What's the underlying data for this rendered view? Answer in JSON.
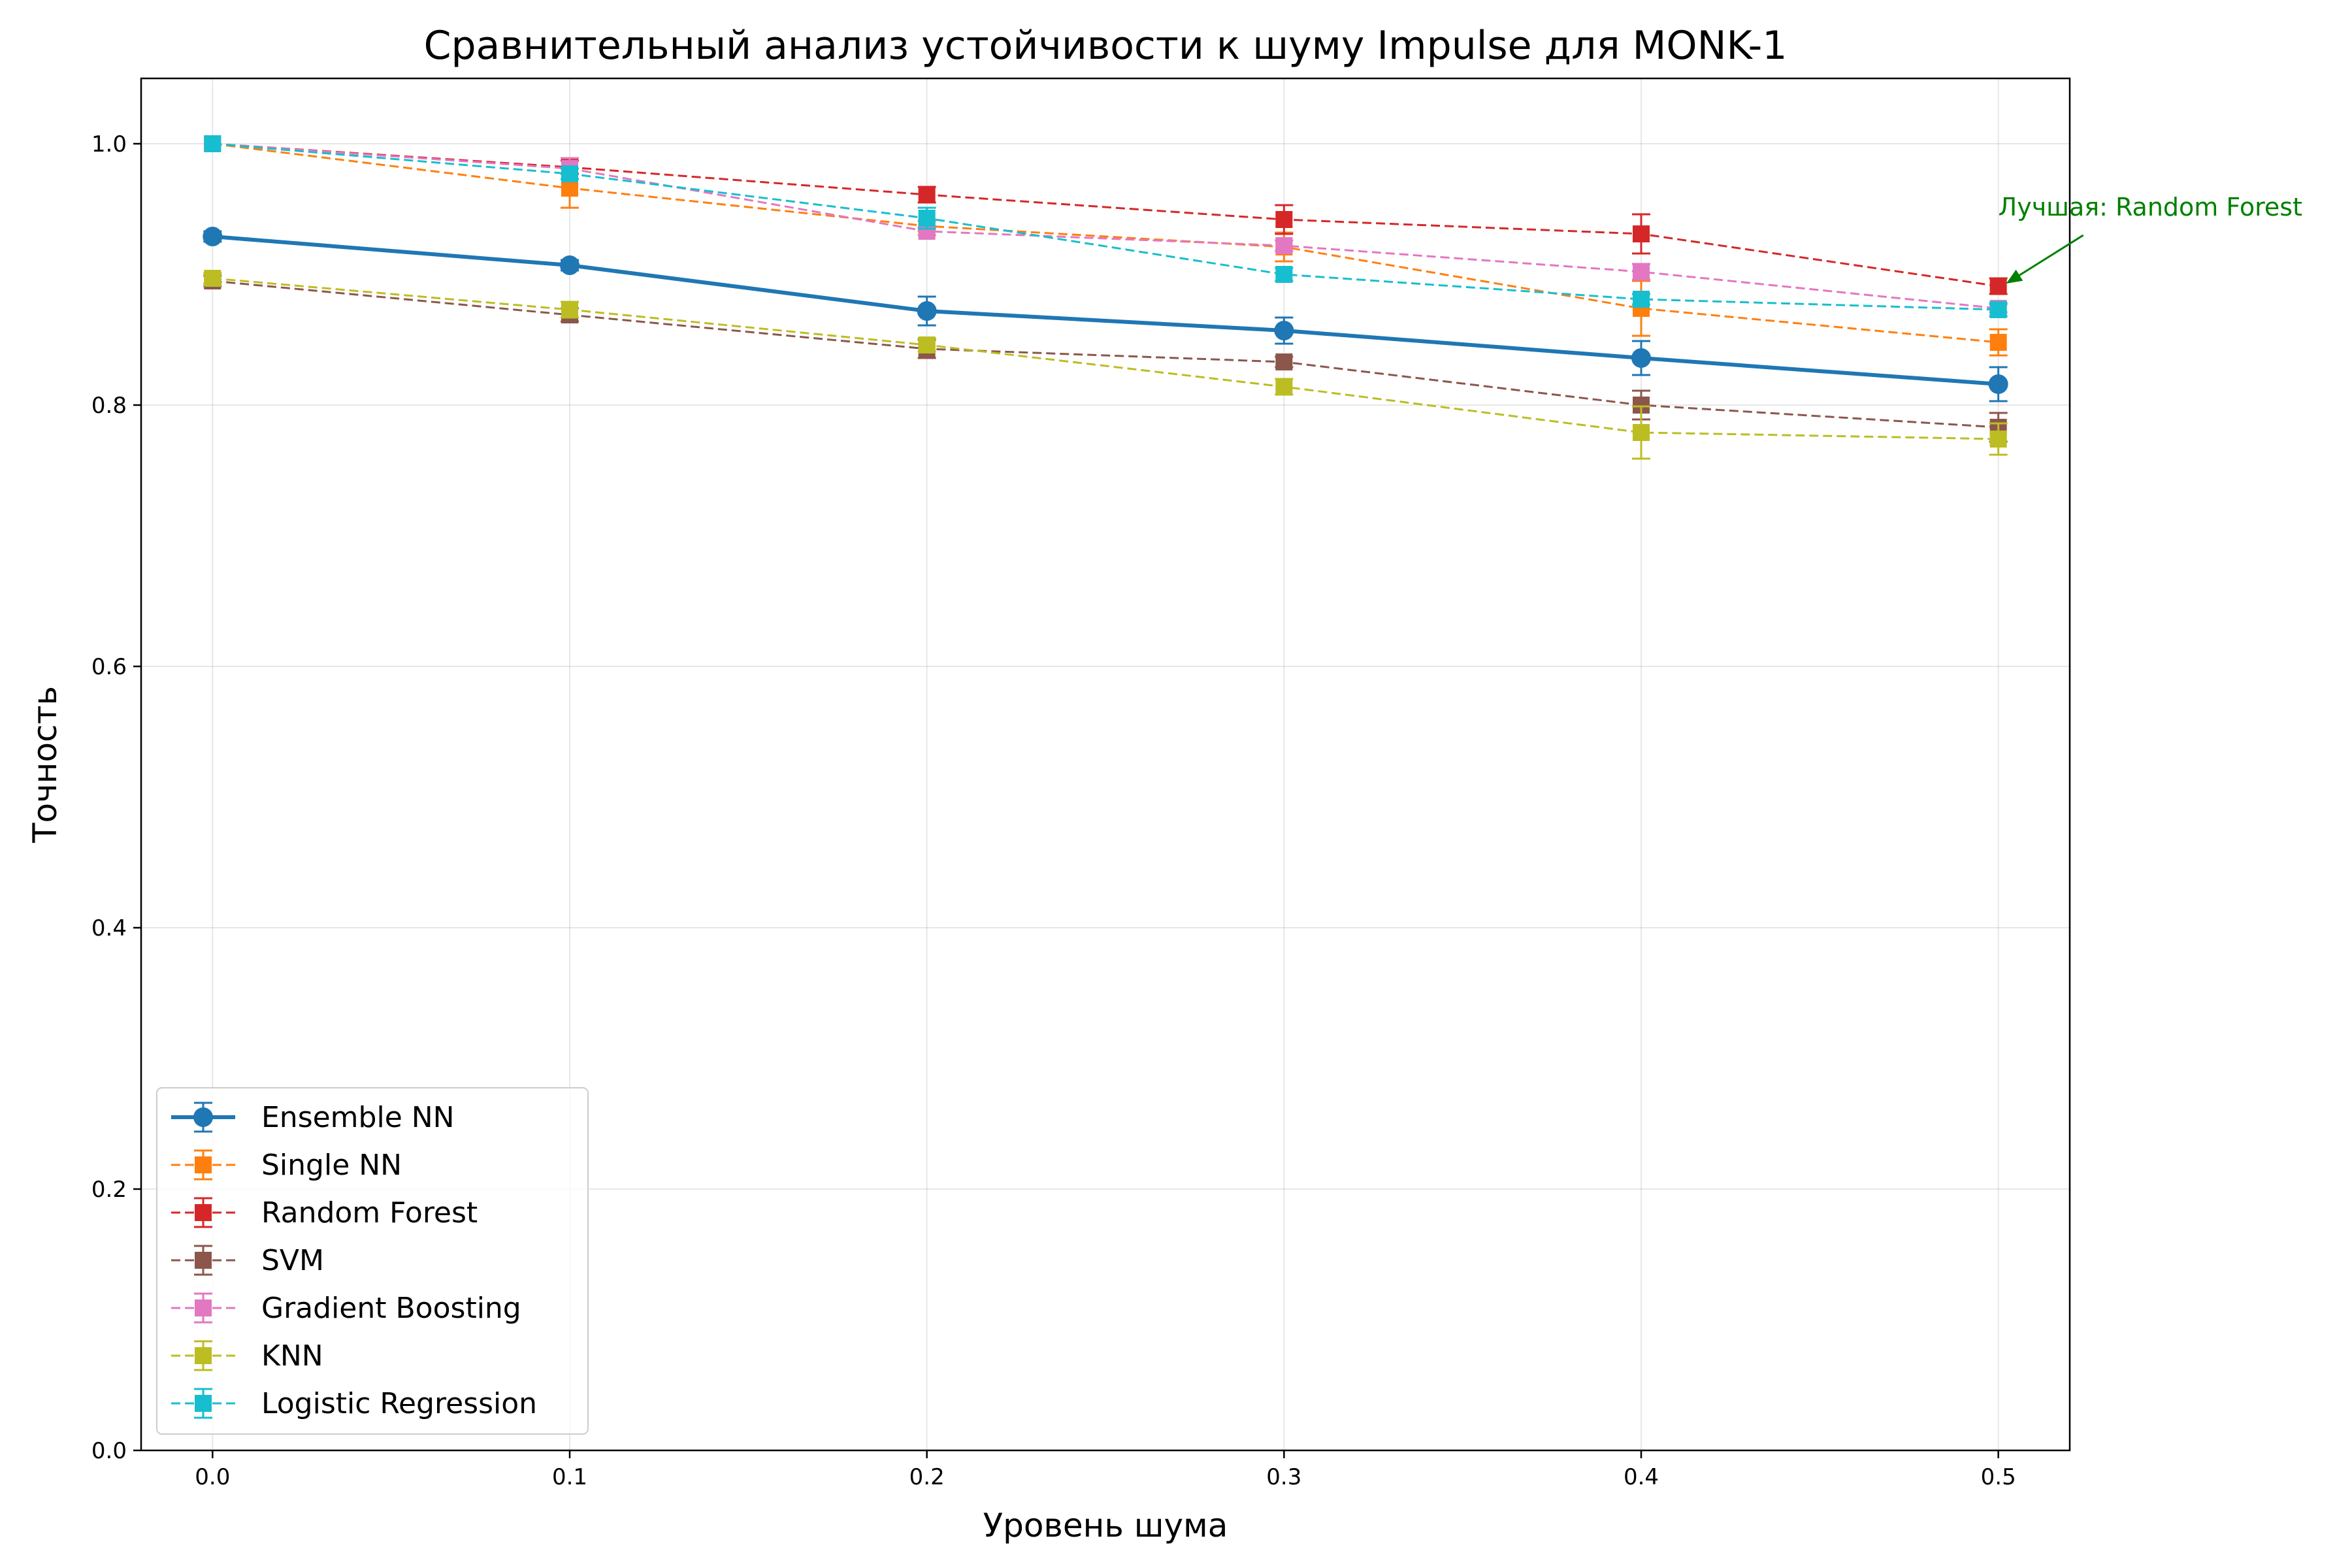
{
  "chart_data": {
    "type": "line",
    "title": "Сравнительный анализ устойчивости к шуму Impulse для MONK-1",
    "xlabel": "Уровень шума",
    "ylabel": "Точность",
    "x": [
      0.0,
      0.1,
      0.2,
      0.3,
      0.4,
      0.5
    ],
    "x_tick_labels": [
      "0.0",
      "0.1",
      "0.2",
      "0.3",
      "0.4",
      "0.5"
    ],
    "y_tick_values": [
      0.0,
      0.2,
      0.4,
      0.6,
      0.8,
      1.0
    ],
    "y_tick_labels": [
      "0.0",
      "0.2",
      "0.4",
      "0.6",
      "0.8",
      "1.0"
    ],
    "xlim": [
      -0.02,
      0.52
    ],
    "ylim": [
      0.0,
      1.05
    ],
    "grid": true,
    "legend_placement": "lower-left",
    "series": [
      {
        "name": "Ensemble NN",
        "color": "#1f77b4",
        "marker": "circle",
        "style": "solid",
        "values": [
          0.929,
          0.907,
          0.872,
          0.857,
          0.836,
          0.816
        ],
        "errors": [
          0.004,
          0.004,
          0.011,
          0.01,
          0.013,
          0.013
        ]
      },
      {
        "name": "Single NN",
        "color": "#ff7f0e",
        "marker": "square",
        "style": "dashed",
        "values": [
          1.0,
          0.966,
          0.937,
          0.921,
          0.874,
          0.848
        ],
        "errors": [
          0.0,
          0.015,
          0.004,
          0.011,
          0.021,
          0.01
        ]
      },
      {
        "name": "Random Forest",
        "color": "#d62728",
        "marker": "square",
        "style": "dashed",
        "values": [
          1.0,
          0.982,
          0.961,
          0.942,
          0.931,
          0.891
        ],
        "errors": [
          0.0,
          0.005,
          0.006,
          0.011,
          0.015,
          0.006
        ]
      },
      {
        "name": "SVM",
        "color": "#8c564b",
        "marker": "square",
        "style": "dashed",
        "values": [
          0.895,
          0.869,
          0.843,
          0.833,
          0.8,
          0.783
        ],
        "errors": [
          0.004,
          0.005,
          0.007,
          0.004,
          0.011,
          0.011
        ]
      },
      {
        "name": "Gradient Boosting",
        "color": "#e377c2",
        "marker": "square",
        "style": "dashed",
        "values": [
          1.0,
          0.981,
          0.933,
          0.922,
          0.902,
          0.874
        ],
        "errors": [
          0.0,
          0.008,
          0.003,
          0.004,
          0.006,
          0.003
        ]
      },
      {
        "name": "KNN",
        "color": "#bcbd22",
        "marker": "square",
        "style": "dashed",
        "values": [
          0.897,
          0.873,
          0.846,
          0.814,
          0.779,
          0.774
        ],
        "errors": [
          0.004,
          0.006,
          0.005,
          0.006,
          0.02,
          0.012
        ]
      },
      {
        "name": "Logistic Regression",
        "color": "#17becf",
        "marker": "square",
        "style": "dashed",
        "values": [
          1.0,
          0.977,
          0.943,
          0.9,
          0.881,
          0.873
        ],
        "errors": [
          0.0,
          0.004,
          0.008,
          0.005,
          0.004,
          0.005
        ]
      }
    ],
    "annotation": {
      "text": "Лучшая: Random Forest",
      "color": "#008000",
      "target": {
        "x": 0.5,
        "y": 0.891
      },
      "text_position": {
        "x": 0.5,
        "y": 0.945
      }
    }
  }
}
